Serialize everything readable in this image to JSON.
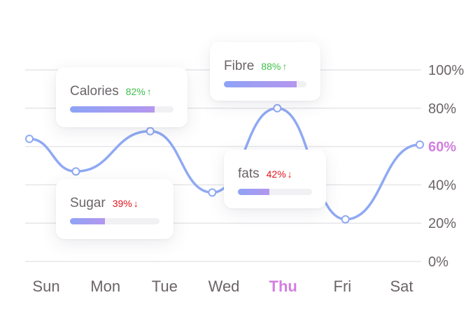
{
  "chart_data": {
    "type": "line",
    "categories": [
      "Sun",
      "Mon",
      "Tue",
      "Wed",
      "Thu",
      "Fri",
      "Sat"
    ],
    "highlight_category": "Thu",
    "x": [
      0,
      1,
      2,
      3,
      4,
      5,
      6
    ],
    "series": [
      {
        "points": [
          {
            "x": 0.0,
            "y": 64
          },
          {
            "x": 0.75,
            "y": 47
          },
          {
            "x": 1.95,
            "y": 68
          },
          {
            "x": 2.95,
            "y": 36
          },
          {
            "x": 4.0,
            "y": 80
          },
          {
            "x": 5.1,
            "y": 22
          },
          {
            "x": 6.3,
            "y": 61
          }
        ],
        "color": "#8fa9f3"
      }
    ],
    "yticks": [
      "0%",
      "20%",
      "40%",
      "60%",
      "80%",
      "100%"
    ],
    "ytick_values": [
      0,
      20,
      40,
      60,
      80,
      100
    ],
    "highlight_ytick": "60%",
    "ylim": [
      0,
      100
    ],
    "grid": true,
    "title": "",
    "xlabel": "",
    "ylabel": ""
  },
  "colors": {
    "line": "#8fa9f3",
    "grid": "#e6e6ea",
    "label": "#6b6468",
    "highlight": "#d27fe0",
    "up": "#3ec04a",
    "down": "#e0141b"
  },
  "cards": [
    {
      "name": "Calories",
      "percent": "82%",
      "value": 82,
      "trend": "up"
    },
    {
      "name": "Fibre",
      "percent": "88%",
      "value": 88,
      "trend": "up"
    },
    {
      "name": "Sugar",
      "percent": "39%",
      "value": 39,
      "trend": "down"
    },
    {
      "name": "fats",
      "percent": "42%",
      "value": 42,
      "trend": "down"
    }
  ]
}
